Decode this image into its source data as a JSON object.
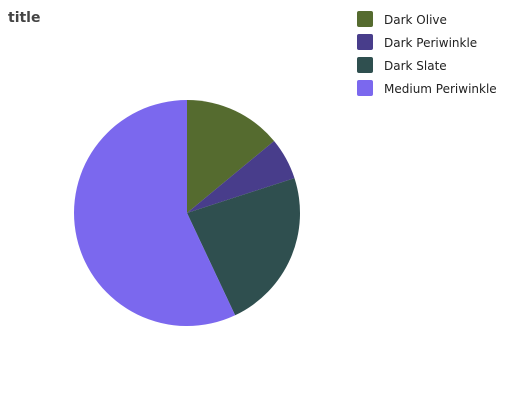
{
  "chart_data": {
    "type": "pie",
    "title": "title",
    "categories": [
      "Dark Olive",
      "Dark Periwinkle",
      "Dark Slate",
      "Medium Periwinkle"
    ],
    "values": [
      14,
      6,
      23,
      57
    ],
    "colors": [
      "#556b2f",
      "#483d8b",
      "#2f4f4f",
      "#7b68ee"
    ],
    "legend_position": "right",
    "start_angle_deg": -90,
    "direction": "clockwise"
  }
}
